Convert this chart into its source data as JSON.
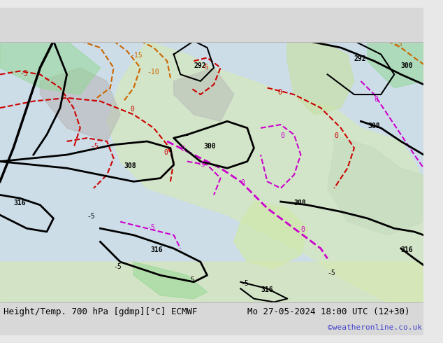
{
  "title_left": "Height/Temp. 700 hPa [gdmp][°C] ECMWF",
  "title_right": "Mo 27-05-2024 18:00 UTC (12+30)",
  "copyright": "©weatheronline.co.uk",
  "bg_color": "#e8f4e8",
  "land_color": "#c8e6c8",
  "sea_color": "#d0e8f0",
  "gray_color": "#c0c0c0",
  "bottom_bar_color": "#e0e0e0",
  "font_family": "monospace",
  "footer_fontsize": 10,
  "copyright_color": "#4444cc"
}
